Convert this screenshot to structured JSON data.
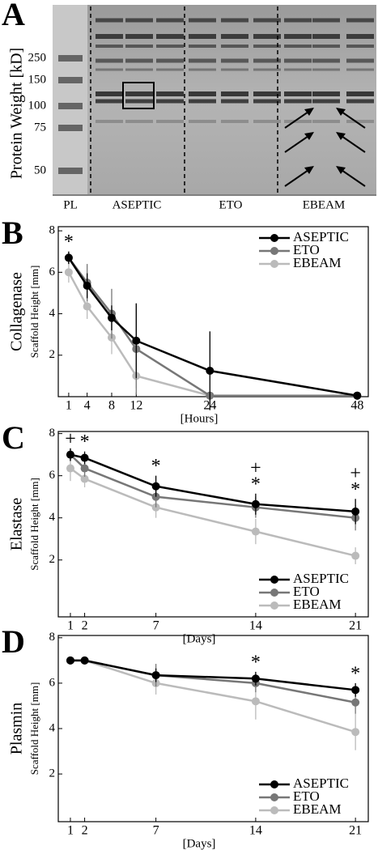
{
  "gel": {
    "panel": "A",
    "ylabel": "Protein Weight [kD]",
    "markers": [
      250,
      150,
      100,
      75,
      50
    ],
    "lanes": [
      "PL",
      "ASEPTIC",
      "ETO",
      "EBEAM"
    ]
  },
  "chart_data": [
    {
      "type": "line",
      "panel": "B",
      "ylabel": "Collagenase",
      "ylabel_sub": "Scaffold Height [mm]",
      "xlabel": "[Hours]",
      "x": [
        1,
        4,
        8,
        12,
        24,
        48
      ],
      "xlim": [
        -0.7,
        49.8
      ],
      "xticks": [
        1,
        4,
        8,
        12,
        24,
        48
      ],
      "ylim": [
        0,
        8.2
      ],
      "yticks": [
        2,
        4,
        6,
        8
      ],
      "legend": "upper right",
      "series": [
        {
          "name": "ASEPTIC",
          "color": "#000000",
          "values": [
            6.7,
            5.35,
            3.8,
            2.7,
            1.25,
            0.05
          ],
          "errors": [
            0.3,
            0.6,
            0.6,
            1.8,
            1.9,
            0
          ]
        },
        {
          "name": "ETO",
          "color": "#777777",
          "values": [
            6.7,
            5.5,
            4.0,
            2.3,
            0.05,
            0.05
          ],
          "errors": [
            0.3,
            0.9,
            1.2,
            2.2,
            0,
            0
          ]
        },
        {
          "name": "EBEAM",
          "color": "#bbbbbb",
          "values": [
            6.0,
            4.35,
            2.85,
            1.0,
            0.05,
            0.05
          ],
          "errors": [
            0.5,
            0.6,
            0.8,
            0.6,
            0,
            0
          ]
        }
      ],
      "annotations": [
        {
          "text": "*",
          "x": 1
        }
      ]
    },
    {
      "type": "line",
      "panel": "C",
      "ylabel": "Elastase",
      "ylabel_sub": "Scaffold Height [mm]",
      "xlabel": "[Days]",
      "x": [
        1,
        2,
        7,
        14,
        21
      ],
      "xlim": [
        0.15,
        21.9
      ],
      "xticks": [
        1,
        2,
        7,
        14,
        21
      ],
      "ylim": [
        -0.7,
        8.1
      ],
      "yticks": [
        2,
        4,
        6,
        8
      ],
      "legend": "lower right",
      "series": [
        {
          "name": "ASEPTIC",
          "color": "#000000",
          "values": [
            7.0,
            6.85,
            5.5,
            4.65,
            4.3
          ],
          "errors": [
            0.3,
            0.3,
            0.5,
            0.5,
            0.6
          ]
        },
        {
          "name": "ETO",
          "color": "#777777",
          "values": [
            7.0,
            6.35,
            5.0,
            4.5,
            4.0
          ],
          "errors": [
            0.3,
            0.4,
            0.5,
            0.5,
            0.6
          ]
        },
        {
          "name": "EBEAM",
          "color": "#bbbbbb",
          "values": [
            6.35,
            5.85,
            4.5,
            3.35,
            2.2
          ],
          "errors": [
            0.6,
            0.4,
            0.5,
            0.6,
            0.4
          ]
        }
      ],
      "annotations": [
        {
          "text": "+",
          "x": 1
        },
        {
          "text": "*",
          "x": 2
        },
        {
          "text": "*",
          "x": 7
        },
        {
          "text": "*",
          "x": 14
        },
        {
          "text": "+",
          "x": 14
        },
        {
          "text": "*",
          "x": 21
        },
        {
          "text": "+",
          "x": 21
        }
      ]
    },
    {
      "type": "line",
      "panel": "D",
      "ylabel": "Plasmin",
      "ylabel_sub": "Scaffold Height [mm]",
      "xlabel": "[Days]",
      "x": [
        1,
        2,
        7,
        14,
        21
      ],
      "xlim": [
        0.15,
        21.9
      ],
      "xticks": [
        1,
        2,
        7,
        14,
        21
      ],
      "ylim": [
        -0.1,
        8.1
      ],
      "yticks": [
        2,
        4,
        6,
        8
      ],
      "legend": "lower right",
      "series": [
        {
          "name": "ASEPTIC",
          "color": "#000000",
          "values": [
            7.0,
            7.0,
            6.35,
            6.2,
            5.7
          ],
          "errors": [
            0,
            0,
            0.3,
            0.3,
            0.3
          ]
        },
        {
          "name": "ETO",
          "color": "#777777",
          "values": [
            7.0,
            7.0,
            6.35,
            6.0,
            5.15
          ],
          "errors": [
            0,
            0,
            0.5,
            0.4,
            0.5
          ]
        },
        {
          "name": "EBEAM",
          "color": "#bbbbbb",
          "values": [
            7.0,
            7.0,
            6.0,
            5.2,
            3.85
          ],
          "errors": [
            0,
            0,
            0.5,
            0.8,
            0.8
          ]
        }
      ],
      "annotations": [
        {
          "text": "*",
          "x": 14
        },
        {
          "text": "*",
          "x": 21
        }
      ]
    }
  ]
}
